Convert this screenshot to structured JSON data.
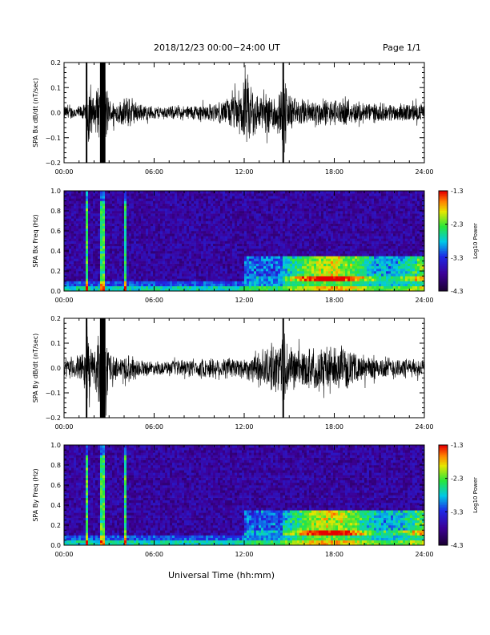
{
  "header": {
    "title": "2018/12/23  00:00−24:00 UT",
    "page": "Page 1/1"
  },
  "chart_data": [
    {
      "type": "line",
      "title": "",
      "ylabel": "SPA Bx dB/dt (nT/sec)",
      "xlabel": "",
      "xlim": [
        0,
        24
      ],
      "ylim": [
        -0.2,
        0.2
      ],
      "xticks": [
        "00:00",
        "06:00",
        "12:00",
        "18:00",
        "24:00"
      ],
      "yticks": [
        "−0.2",
        "−0.1",
        "0.0",
        "0.1",
        "0.2"
      ],
      "series": [
        {
          "x": [
            0,
            1,
            1.5,
            1.6,
            2,
            2.5,
            2.65,
            3,
            3.5,
            4,
            4.1,
            5,
            6,
            7,
            8,
            9,
            10,
            10.5,
            11,
            11.5,
            12,
            12.2,
            12.5,
            13,
            13.5,
            14,
            14.5,
            14.6,
            15,
            15.5,
            16,
            16.5,
            17,
            17.5,
            18,
            18.5,
            19,
            19.5,
            20,
            21,
            22,
            23,
            24
          ],
          "y": [
            0.03,
            0.03,
            0.04,
            0.21,
            0.05,
            0.2,
            0.21,
            0.06,
            0.05,
            0.06,
            0.08,
            0.04,
            0.03,
            0.03,
            0.03,
            0.04,
            0.04,
            0.05,
            0.07,
            0.09,
            0.13,
            0.17,
            0.14,
            0.08,
            0.09,
            0.1,
            0.11,
            0.21,
            0.09,
            0.06,
            0.06,
            0.06,
            0.06,
            0.06,
            0.06,
            0.06,
            0.05,
            0.05,
            0.05,
            0.04,
            0.04,
            0.04,
            0.04
          ]
        }
      ]
    },
    {
      "type": "heatmap",
      "title": "",
      "ylabel": "SPA Bx Freq (Hz)",
      "xlabel": "",
      "xlim": [
        0,
        24
      ],
      "ylim": [
        0,
        1.0
      ],
      "xticks": [
        "00:00",
        "06:00",
        "12:00",
        "18:00",
        "24:00"
      ],
      "yticks": [
        "0.0",
        "0.2",
        "0.4",
        "0.6",
        "0.8",
        "1.0"
      ],
      "colorbar": {
        "label": "Log10 Power",
        "min": -4.3,
        "max": -1.3,
        "ticks": [
          "-1.3",
          "-2.3",
          "-3.3",
          "-4.3"
        ]
      },
      "features": {
        "spikes_hr": [
          1.5,
          2.5,
          2.65,
          4.1
        ],
        "active_start_hr": 14.5,
        "active_band_hz": [
          0.15,
          0.35
        ]
      }
    },
    {
      "type": "line",
      "title": "",
      "ylabel": "SPA By dB/dt (nT/sec)",
      "xlabel": "",
      "xlim": [
        0,
        24
      ],
      "ylim": [
        -0.2,
        0.2
      ],
      "xticks": [
        "00:00",
        "06:00",
        "12:00",
        "18:00",
        "24:00"
      ],
      "yticks": [
        "−0.2",
        "−0.1",
        "0.0",
        "0.1",
        "0.2"
      ],
      "series": [
        {
          "x": [
            0,
            0.5,
            1,
            1.5,
            1.6,
            2,
            2.5,
            2.65,
            3,
            3.5,
            4,
            4.1,
            5,
            6,
            7,
            8,
            9,
            10,
            11,
            12,
            12.5,
            13,
            13.5,
            14,
            14.5,
            14.6,
            15,
            15.5,
            16,
            16.5,
            17,
            17.5,
            18,
            18.5,
            19,
            19.5,
            20,
            21,
            22,
            23,
            24
          ],
          "y": [
            0.04,
            0.05,
            0.06,
            0.08,
            0.21,
            0.07,
            0.2,
            0.21,
            0.07,
            0.05,
            0.05,
            0.07,
            0.04,
            0.03,
            0.03,
            0.04,
            0.04,
            0.05,
            0.05,
            0.05,
            0.06,
            0.08,
            0.09,
            0.11,
            0.13,
            0.21,
            0.1,
            0.08,
            0.09,
            0.09,
            0.11,
            0.1,
            0.09,
            0.09,
            0.08,
            0.06,
            0.06,
            0.05,
            0.05,
            0.04,
            0.04
          ]
        }
      ]
    },
    {
      "type": "heatmap",
      "title": "",
      "ylabel": "SPA By Freq (Hz)",
      "xlabel": "Universal Time (hh:mm)",
      "xlim": [
        0,
        24
      ],
      "ylim": [
        0,
        1.0
      ],
      "xticks": [
        "00:00",
        "06:00",
        "12:00",
        "18:00",
        "24:00"
      ],
      "yticks": [
        "0.0",
        "0.2",
        "0.4",
        "0.6",
        "0.8",
        "1.0"
      ],
      "colorbar": {
        "label": "Log10 Power",
        "min": -4.3,
        "max": -1.3,
        "ticks": [
          "-1.3",
          "-2.3",
          "-3.3",
          "-4.3"
        ]
      },
      "features": {
        "spikes_hr": [
          1.5,
          2.5,
          2.65,
          4.1
        ],
        "active_start_hr": 14.5,
        "active_band_hz": [
          0.15,
          0.35
        ]
      }
    }
  ]
}
